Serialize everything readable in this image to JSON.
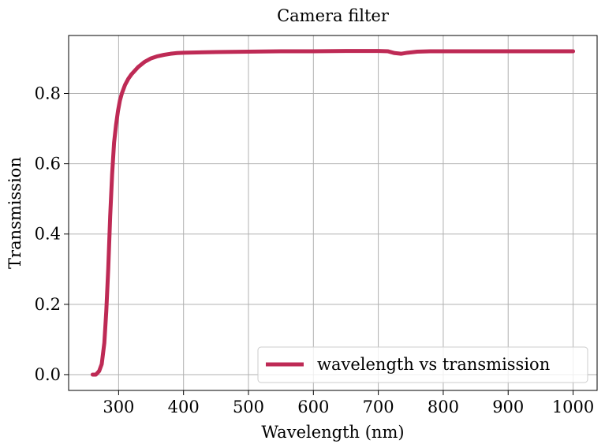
{
  "chart_data": {
    "type": "line",
    "title": "Camera filter",
    "xlabel": "Wavelength (nm)",
    "ylabel": "Transmission",
    "xlim": [
      223,
      1037
    ],
    "ylim": [
      -0.045,
      0.965
    ],
    "xticks": [
      300,
      400,
      500,
      600,
      700,
      800,
      900,
      1000
    ],
    "xtick_labels": [
      "300",
      "400",
      "500",
      "600",
      "700",
      "800",
      "900",
      "1000"
    ],
    "yticks": [
      0.0,
      0.2,
      0.4,
      0.6,
      0.8
    ],
    "ytick_labels": [
      "0.0",
      "0.2",
      "0.4",
      "0.6",
      "0.8"
    ],
    "grid": true,
    "legend_position": "lower-right",
    "series": [
      {
        "name": "wavelength vs transmission",
        "color": "#be2a55",
        "x": [
          260,
          265,
          270,
          274,
          278,
          281,
          284,
          287,
          290,
          293,
          296,
          299,
          302,
          305,
          310,
          315,
          320,
          330,
          340,
          350,
          360,
          370,
          380,
          390,
          400,
          450,
          500,
          550,
          600,
          650,
          700,
          715,
          725,
          735,
          745,
          760,
          780,
          800,
          850,
          900,
          950,
          1000
        ],
        "y": [
          0.0,
          0.0,
          0.01,
          0.03,
          0.09,
          0.18,
          0.3,
          0.45,
          0.57,
          0.66,
          0.71,
          0.75,
          0.78,
          0.8,
          0.825,
          0.842,
          0.855,
          0.875,
          0.89,
          0.9,
          0.906,
          0.91,
          0.913,
          0.915,
          0.916,
          0.918,
          0.919,
          0.92,
          0.92,
          0.921,
          0.921,
          0.92,
          0.915,
          0.913,
          0.916,
          0.919,
          0.92,
          0.92,
          0.92,
          0.92,
          0.92,
          0.92
        ]
      }
    ]
  }
}
